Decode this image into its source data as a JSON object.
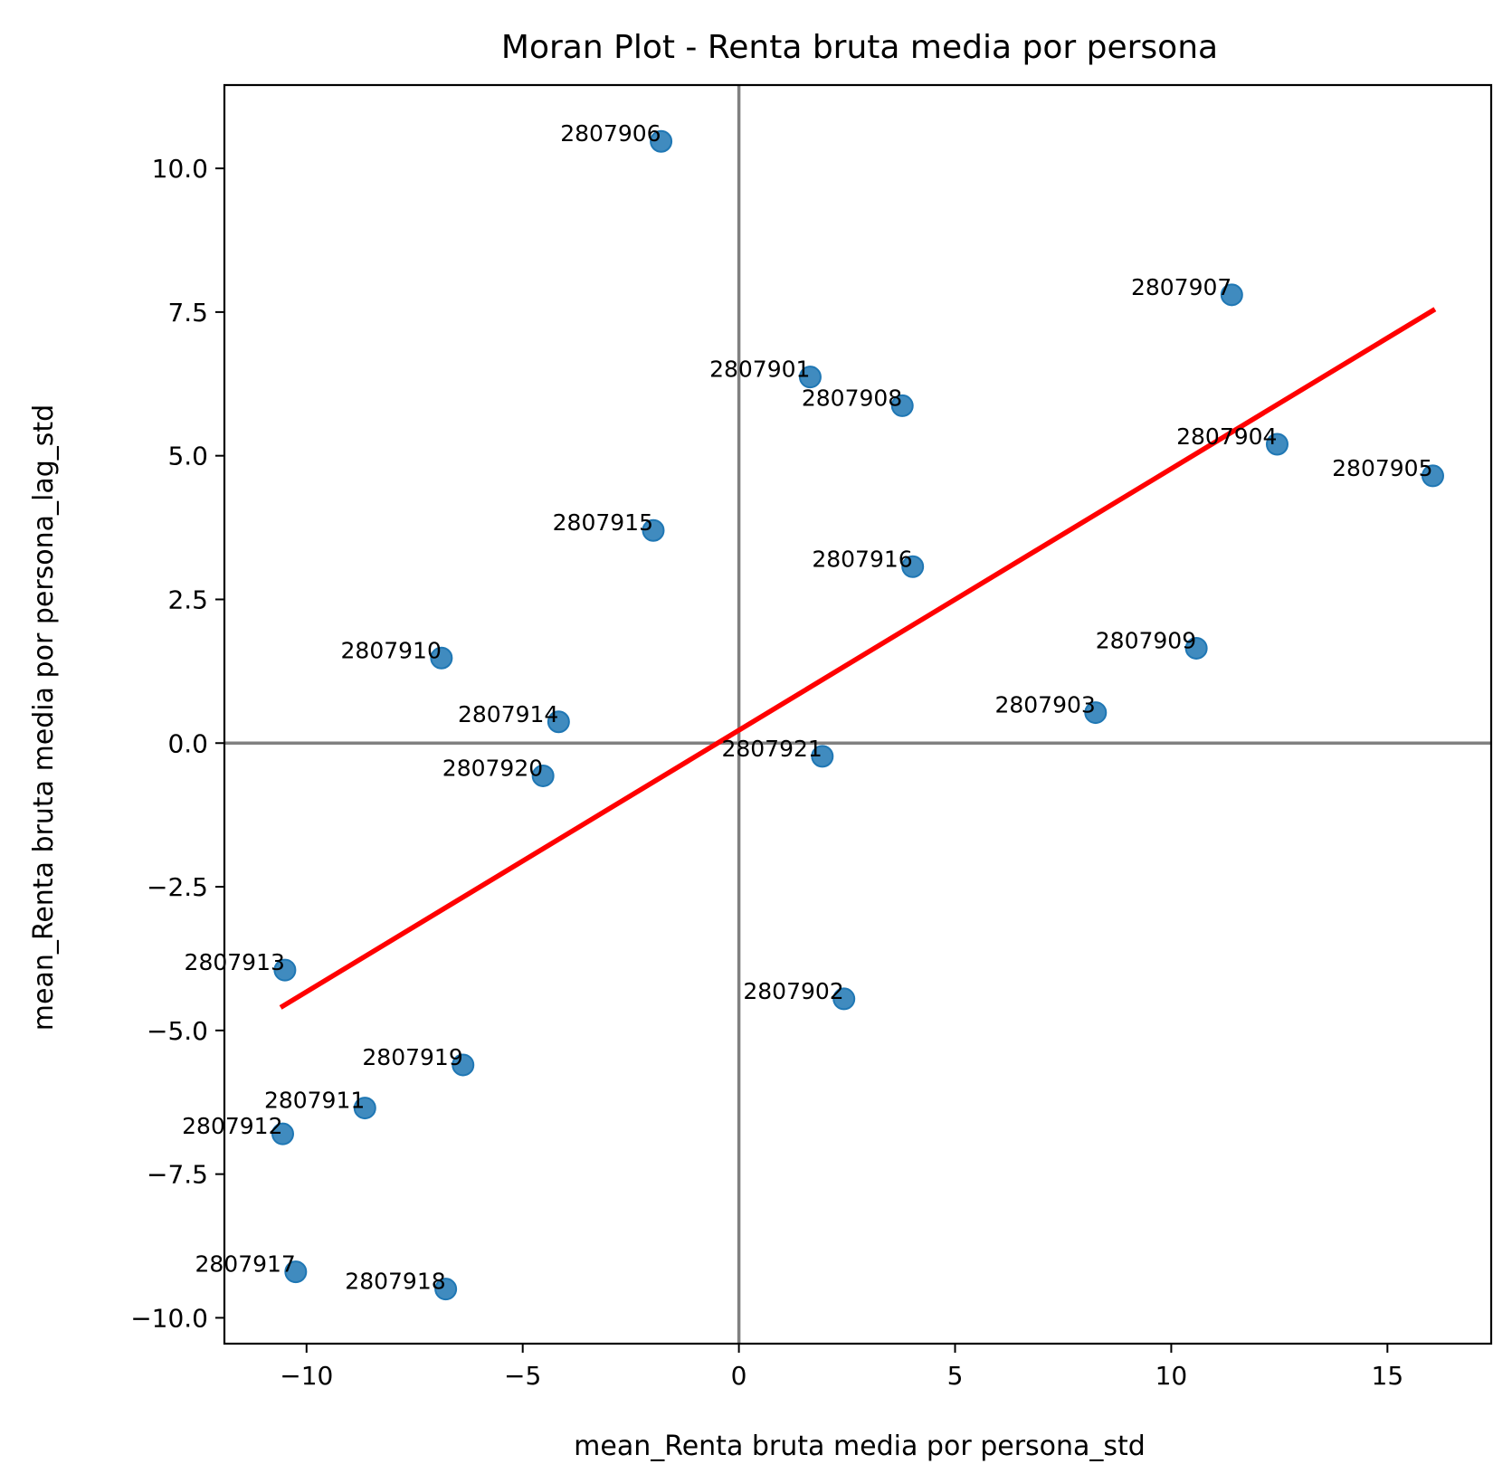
{
  "chart_data": {
    "type": "scatter",
    "title": "Moran Plot - Renta bruta media por persona",
    "xlabel": "mean_Renta bruta media por persona_std",
    "ylabel": "mean_Renta bruta media por persona_lag_std",
    "xlim": [
      -11.9,
      17.4
    ],
    "ylim": [
      -10.45,
      11.45
    ],
    "xticks": [
      -10,
      -5,
      0,
      5,
      10,
      15
    ],
    "xtick_labels": [
      "−10",
      "−5",
      "0",
      "5",
      "10",
      "15"
    ],
    "yticks": [
      -10.0,
      -7.5,
      -5.0,
      -2.5,
      0.0,
      2.5,
      5.0,
      7.5,
      10.0
    ],
    "ytick_labels": [
      "−10.0",
      "−7.5",
      "−5.0",
      "−2.5",
      "0.0",
      "2.5",
      "5.0",
      "7.5",
      "10.0"
    ],
    "grid": false,
    "reference_lines": {
      "x": 0,
      "y": 0,
      "color": "#808080"
    },
    "point_color": "#1f77b4",
    "regression_line": {
      "color": "#ff0000",
      "x": [
        -10.6,
        16.1
      ],
      "y": [
        -4.6,
        7.55
      ]
    },
    "points": [
      {
        "label": "2807901",
        "x": 1.65,
        "y": 6.37
      },
      {
        "label": "2807902",
        "x": 2.43,
        "y": -4.45
      },
      {
        "label": "2807903",
        "x": 8.25,
        "y": 0.53
      },
      {
        "label": "2807904",
        "x": 12.45,
        "y": 5.2
      },
      {
        "label": "2807905",
        "x": 16.05,
        "y": 4.65
      },
      {
        "label": "2807906",
        "x": -1.8,
        "y": 10.47
      },
      {
        "label": "2807907",
        "x": 11.4,
        "y": 7.8
      },
      {
        "label": "2807908",
        "x": 3.78,
        "y": 5.87
      },
      {
        "label": "2807909",
        "x": 10.58,
        "y": 1.65
      },
      {
        "label": "2807910",
        "x": -6.88,
        "y": 1.48
      },
      {
        "label": "2807911",
        "x": -8.65,
        "y": -6.35
      },
      {
        "label": "2807912",
        "x": -10.55,
        "y": -6.8
      },
      {
        "label": "2807913",
        "x": -10.5,
        "y": -3.95
      },
      {
        "label": "2807914",
        "x": -4.17,
        "y": 0.37
      },
      {
        "label": "2807915",
        "x": -1.98,
        "y": 3.7
      },
      {
        "label": "2807916",
        "x": 4.02,
        "y": 3.07
      },
      {
        "label": "2807917",
        "x": -10.25,
        "y": -9.2
      },
      {
        "label": "2807918",
        "x": -6.78,
        "y": -9.5
      },
      {
        "label": "2807919",
        "x": -6.38,
        "y": -5.6
      },
      {
        "label": "2807920",
        "x": -4.53,
        "y": -0.57
      },
      {
        "label": "2807921",
        "x": 1.93,
        "y": -0.23
      }
    ]
  }
}
